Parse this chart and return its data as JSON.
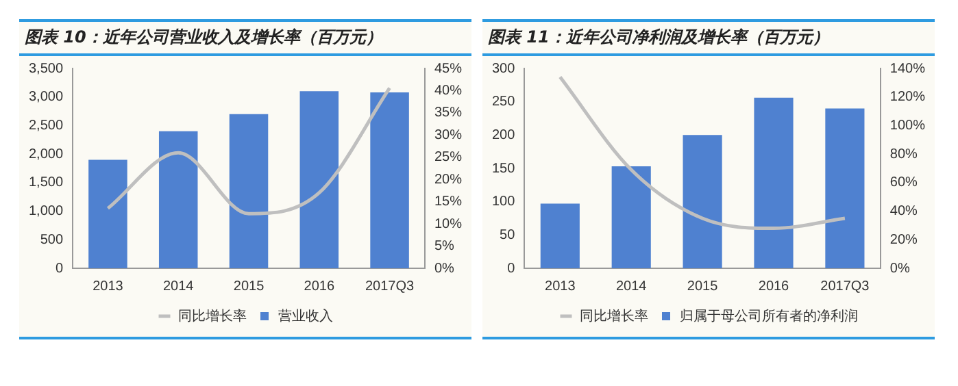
{
  "chart_data": [
    {
      "type": "bar",
      "title": "图表 10：近年公司营业收入及增长率（百万元）",
      "categories": [
        "2013",
        "2014",
        "2015",
        "2016",
        "2017Q3"
      ],
      "series": [
        {
          "name": "营业收入",
          "color": "#4f81d0",
          "values": [
            1900,
            2400,
            2700,
            3100,
            3080
          ]
        },
        {
          "name": "同比增长率",
          "type": "line",
          "axis": "y2",
          "color": "#bfbfbf",
          "values": [
            13.5,
            26,
            12.3,
            17,
            40.6
          ]
        }
      ],
      "ylim": [
        0,
        3500
      ],
      "yticks": [
        {
          "value": 0,
          "label": "0"
        },
        {
          "value": 500,
          "label": "500"
        },
        {
          "value": 1000,
          "label": "1,000"
        },
        {
          "value": 1500,
          "label": "1,500"
        },
        {
          "value": 2000,
          "label": "2,000"
        },
        {
          "value": 2500,
          "label": "2,500"
        },
        {
          "value": 3000,
          "label": "3,000"
        },
        {
          "value": 3500,
          "label": "3,500"
        }
      ],
      "y2lim": [
        0,
        45
      ],
      "y2ticks": [
        {
          "value": 0,
          "label": "0%"
        },
        {
          "value": 5,
          "label": "5%"
        },
        {
          "value": 10,
          "label": "10%"
        },
        {
          "value": 15,
          "label": "15%"
        },
        {
          "value": 20,
          "label": "20%"
        },
        {
          "value": 25,
          "label": "25%"
        },
        {
          "value": 30,
          "label": "30%"
        },
        {
          "value": 35,
          "label": "35%"
        },
        {
          "value": 40,
          "label": "40%"
        },
        {
          "value": 45,
          "label": "45%"
        }
      ],
      "legend": "bottom",
      "marker": "none"
    },
    {
      "type": "bar",
      "title": "图表 11：近年公司净利润及增长率（百万元）",
      "categories": [
        "2013",
        "2014",
        "2015",
        "2016",
        "2017Q3"
      ],
      "series": [
        {
          "name": "归属于母公司所有者的净利润",
          "color": "#4f81d0",
          "values": [
            97,
            153,
            200,
            256,
            240
          ]
        },
        {
          "name": "同比增长率",
          "type": "line",
          "axis": "y2",
          "color": "#bfbfbf",
          "values": [
            134,
            69,
            35,
            28,
            35
          ]
        }
      ],
      "ylim": [
        0,
        300
      ],
      "yticks": [
        0,
        50,
        100,
        150,
        200,
        250,
        300
      ],
      "y2lim": [
        0,
        140
      ],
      "y2ticks": [
        {
          "value": 0,
          "label": "0%"
        },
        {
          "value": 20,
          "label": "20%"
        },
        {
          "value": 40,
          "label": "40%"
        },
        {
          "value": 60,
          "label": "60%"
        },
        {
          "value": 80,
          "label": "80%"
        },
        {
          "value": 100,
          "label": "100%"
        },
        {
          "value": 120,
          "label": "120%"
        },
        {
          "value": 140,
          "label": "140%"
        }
      ],
      "legend": "bottom",
      "marker": "none"
    }
  ]
}
